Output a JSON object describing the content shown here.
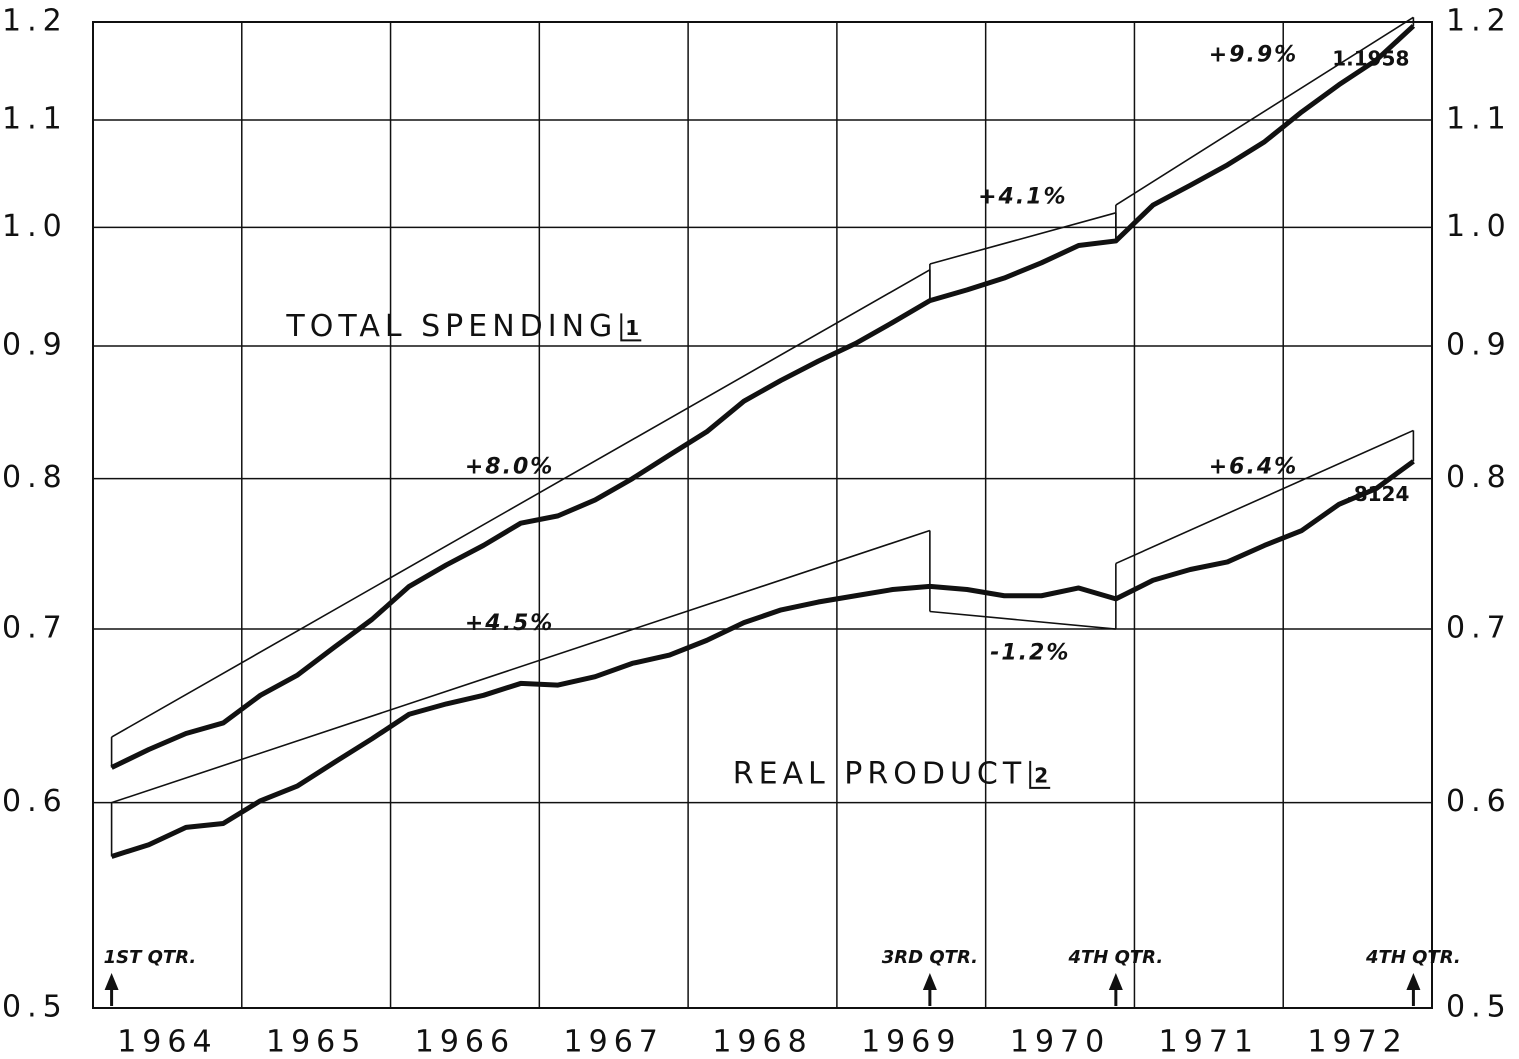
{
  "chart_data": {
    "type": "line",
    "log_y": true,
    "grid": true,
    "xlim": [
      1964,
      1973
    ],
    "xgrid": [
      1964,
      1965,
      1966,
      1967,
      1968,
      1969,
      1970,
      1971,
      1972,
      1973
    ],
    "xticks": [
      {
        "value": 1964.5,
        "label": "1964"
      },
      {
        "value": 1965.5,
        "label": "1965"
      },
      {
        "value": 1966.5,
        "label": "1966"
      },
      {
        "value": 1967.5,
        "label": "1967"
      },
      {
        "value": 1968.5,
        "label": "1968"
      },
      {
        "value": 1969.5,
        "label": "1969"
      },
      {
        "value": 1970.5,
        "label": "1970"
      },
      {
        "value": 1971.5,
        "label": "1971"
      },
      {
        "value": 1972.5,
        "label": "1972"
      }
    ],
    "ylim": [
      0.5,
      1.2
    ],
    "yticks": [
      0.5,
      0.6,
      0.7,
      0.8,
      0.9,
      {
        "value": 1,
        "label": "1.0"
      },
      1.1,
      1.2
    ],
    "y2lim": [
      0.5,
      1.2
    ],
    "y2ticks": [
      0.5,
      0.6,
      0.7,
      0.8,
      0.9,
      {
        "value": 1,
        "label": "1.0"
      },
      1.1,
      1.2
    ],
    "x": [
      1964.125,
      1964.375,
      1964.625,
      1964.875,
      1965.125,
      1965.375,
      1965.625,
      1965.875,
      1966.125,
      1966.375,
      1966.625,
      1966.875,
      1967.125,
      1967.375,
      1967.625,
      1967.875,
      1968.125,
      1968.375,
      1968.625,
      1968.875,
      1969.125,
      1969.375,
      1969.625,
      1969.875,
      1970.125,
      1970.375,
      1970.625,
      1970.875,
      1971.125,
      1971.375,
      1971.625,
      1971.875,
      1972.125,
      1972.375,
      1972.625,
      1972.875
    ],
    "series": [
      {
        "name": "TOTAL SPENDING",
        "note": "1",
        "color": "#111111",
        "label_x": 1965.3,
        "label_y": 0.915,
        "values": [
          0.619,
          0.629,
          0.638,
          0.644,
          0.66,
          0.672,
          0.689,
          0.706,
          0.727,
          0.741,
          0.754,
          0.769,
          0.774,
          0.785,
          0.8,
          0.817,
          0.834,
          0.857,
          0.873,
          0.888,
          0.902,
          0.919,
          0.937,
          0.946,
          0.956,
          0.969,
          0.984,
          0.988,
          1.02,
          1.038,
          1.057,
          1.079,
          1.108,
          1.135,
          1.16,
          1.1958
        ],
        "value_labels": [
          null,
          null,
          null,
          null,
          null,
          null,
          null,
          null,
          null,
          null,
          null,
          null,
          null,
          null,
          null,
          null,
          null,
          null,
          null,
          null,
          null,
          null,
          null,
          null,
          null,
          null,
          null,
          null,
          null,
          null,
          null,
          null,
          null,
          null,
          null,
          "1.1958"
        ]
      },
      {
        "name": "REAL PRODUCT",
        "note": "2",
        "color": "#111111",
        "label_x": 1968.3,
        "label_y": 0.615,
        "values": [
          0.572,
          0.578,
          0.587,
          0.589,
          0.601,
          0.609,
          0.622,
          0.635,
          0.649,
          0.655,
          0.66,
          0.667,
          0.666,
          0.671,
          0.679,
          0.684,
          0.693,
          0.704,
          0.712,
          0.717,
          0.721,
          0.725,
          0.727,
          0.725,
          0.721,
          0.721,
          0.726,
          0.719,
          0.731,
          0.738,
          0.743,
          0.754,
          0.764,
          0.782,
          0.793,
          0.8124
        ],
        "value_labels": [
          null,
          null,
          null,
          null,
          null,
          null,
          null,
          null,
          null,
          null,
          null,
          null,
          null,
          null,
          null,
          null,
          null,
          null,
          null,
          null,
          null,
          null,
          null,
          null,
          null,
          null,
          null,
          null,
          null,
          null,
          null,
          null,
          null,
          null,
          null,
          ".8124"
        ]
      }
    ],
    "trend_lines": [
      {
        "series": 0,
        "x": [
          1964.125,
          1969.625
        ],
        "values": [
          0.636,
          0.963
        ]
      },
      {
        "series": 0,
        "x": [
          1969.625,
          1970.875
        ],
        "values": [
          0.968,
          1.013
        ]
      },
      {
        "series": 0,
        "x": [
          1970.875,
          1972.875
        ],
        "values": [
          1.02,
          1.205
        ]
      },
      {
        "series": 1,
        "x": [
          1964.125,
          1969.625
        ],
        "values": [
          0.6,
          0.764
        ]
      },
      {
        "series": 1,
        "x": [
          1969.625,
          1970.875
        ],
        "values": [
          0.711,
          0.7
        ]
      },
      {
        "series": 1,
        "x": [
          1970.875,
          1972.875
        ],
        "values": [
          0.742,
          0.835
        ]
      }
    ],
    "annotations": [
      {
        "text": "+8.0%",
        "x": 1966.8,
        "y": 0.808
      },
      {
        "text": "+4.5%",
        "x": 1966.8,
        "y": 0.703
      },
      {
        "text": "+4.1%",
        "x": 1970.25,
        "y": 1.027
      },
      {
        "text": "-1.2%",
        "x": 1970.3,
        "y": 0.685
      },
      {
        "text": "+9.9%",
        "x": 1971.8,
        "y": 1.165
      },
      {
        "text": "+6.4%",
        "x": 1971.8,
        "y": 0.808
      }
    ],
    "markers": [
      {
        "label": "1ST QTR.",
        "x": 1964.125
      },
      {
        "label": "3RD QTR.",
        "x": 1969.625
      },
      {
        "label": "4TH QTR.",
        "x": 1970.875
      },
      {
        "label": "4TH QTR.",
        "x": 1972.875
      }
    ]
  }
}
